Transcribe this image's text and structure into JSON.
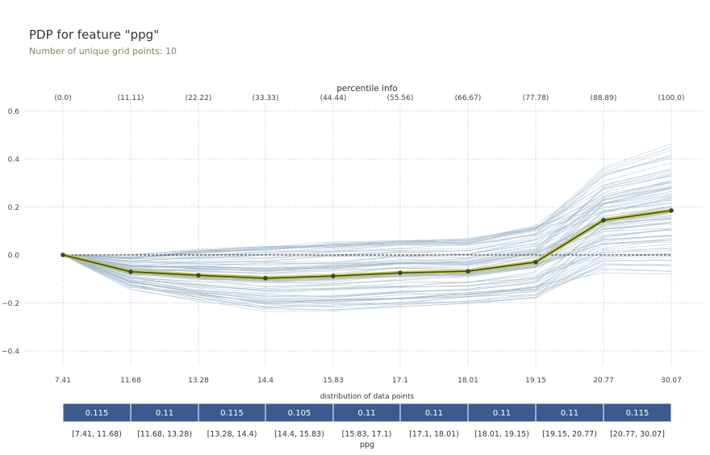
{
  "title": "PDP for feature \"ppg\"",
  "subtitle": "Number of unique grid points: 10",
  "chart_data": {
    "type": "line",
    "title": "PDP for feature \"ppg\"",
    "subtitle": "Number of unique grid points: 10",
    "top_axis_label": "percentile info",
    "percentile_labels": [
      "(0.0)",
      "(11.11)",
      "(22.22)",
      "(33.33)",
      "(44.44)",
      "(55.56)",
      "(66.67)",
      "(77.78)",
      "(88.89)",
      "(100.0)"
    ],
    "x_tick_labels": [
      "7.41",
      "11.68",
      "13.28",
      "14.4",
      "15.83",
      "17.1",
      "18.01",
      "19.15",
      "20.77",
      "30.07"
    ],
    "y_ticks": [
      -0.4,
      -0.2,
      0.0,
      0.2,
      0.4,
      0.6
    ],
    "y_tick_labels": [
      "−0.4",
      "−0.2",
      "0.0",
      "0.2",
      "0.4",
      "0.6"
    ],
    "ylim": [
      -0.47,
      0.62
    ],
    "grid": true,
    "pdp_line": [
      0.0,
      -0.07,
      -0.085,
      -0.097,
      -0.088,
      -0.075,
      -0.068,
      -0.03,
      0.145,
      0.185
    ],
    "colors": {
      "pdp": "#3a4a1c",
      "pdp_halo": "#c9c94d",
      "ice": "#9fb6cc",
      "grid": "#9eb2c6",
      "zero_line": "#333333",
      "bar_fill": "#3b5b8e"
    },
    "distribution": {
      "label": "distribution of data points",
      "values": [
        "0.115",
        "0.11",
        "0.115",
        "0.105",
        "0.11",
        "0.11",
        "0.11",
        "0.11",
        "0.115"
      ],
      "ranges": [
        "[7.41, 11.68)",
        "[11.68, 13.28)",
        "[13.28, 14.4)",
        "[14.4, 15.83)",
        "[15.83, 17.1)",
        "[17.1, 18.01)",
        "[18.01, 19.15)",
        "[19.15, 20.77)",
        "[20.77, 30.07]"
      ],
      "xlabel": "ppg"
    }
  }
}
